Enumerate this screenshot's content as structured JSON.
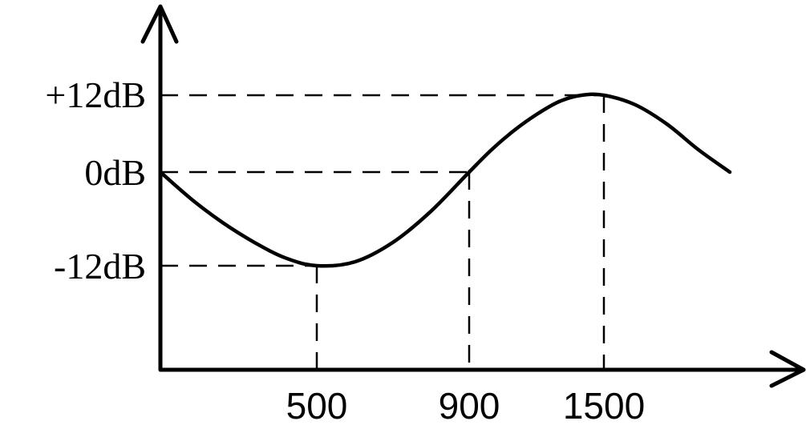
{
  "chart_data": {
    "type": "line",
    "title": "",
    "xlabel": "",
    "ylabel": "",
    "x_ticks": [
      "500",
      "900",
      "1500"
    ],
    "y_ticks": [
      "+12dB",
      "0dB",
      "-12dB"
    ],
    "series": [
      {
        "x": [
          0,
          100,
          200,
          300,
          400,
          500,
          600,
          700,
          800,
          900,
          1000,
          1100,
          1200,
          1300,
          1400,
          1500,
          1600,
          1700,
          1800,
          1900
        ],
        "values": [
          0,
          -3.5,
          -6.5,
          -9,
          -11,
          -12,
          -11.5,
          -9,
          -5,
          0,
          3.5,
          6.5,
          9,
          11,
          12,
          12,
          10.5,
          7.5,
          3.5,
          0
        ]
      }
    ],
    "guides": [
      {
        "x": 500,
        "y": -12
      },
      {
        "x": 900,
        "y": 0
      },
      {
        "x": 1500,
        "y": 12
      }
    ],
    "xlim": [
      0,
      1900
    ],
    "ylim": [
      -30,
      12
    ],
    "grid": false,
    "legend": "none"
  }
}
